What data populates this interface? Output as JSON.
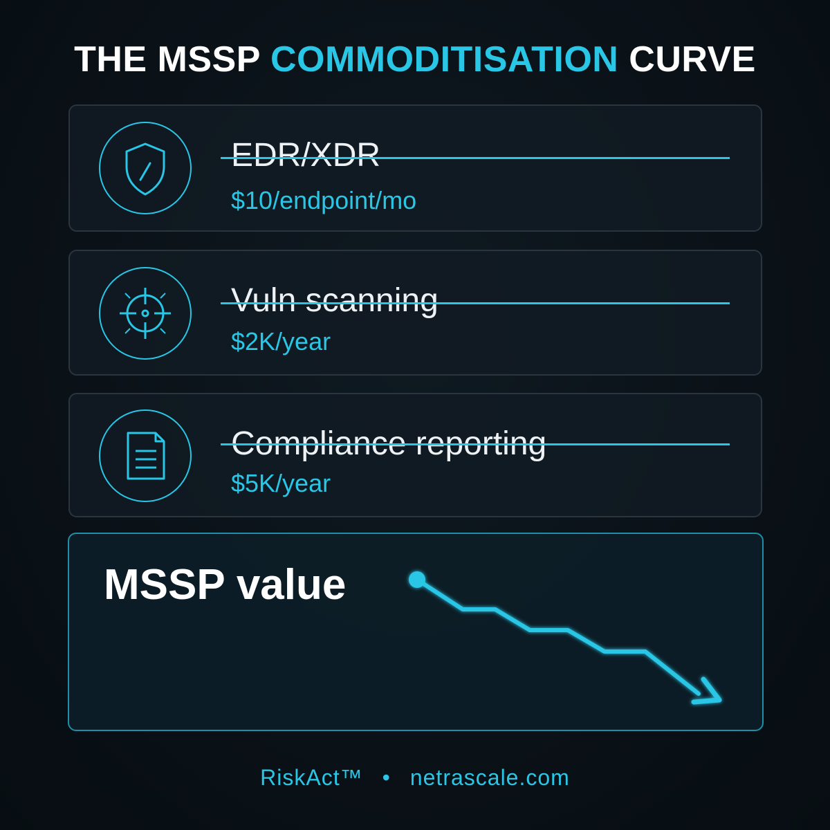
{
  "header": {
    "title_part1": "THE MSSP",
    "title_accent": "COMMODITISATION",
    "title_part2": "CURVE"
  },
  "items": [
    {
      "title": "EDR/XDR",
      "price": "$10/endpoint/mo",
      "icon": "shield-icon",
      "struck": true
    },
    {
      "title": "Vuln scanning",
      "price": "$2K/year",
      "icon": "crosshair-icon",
      "struck": true
    },
    {
      "title": "Compliance reporting",
      "price": "$5K/year",
      "icon": "document-icon",
      "struck": true
    }
  ],
  "value_panel": {
    "label": "MSSP value",
    "trend": "declining"
  },
  "footer": {
    "brand": "RiskAct™",
    "separator": "•",
    "site": "netrascale.com"
  },
  "colors": {
    "background": "#0a1117",
    "accent": "#29c6e6",
    "text": "#ffffff",
    "card_border": "#2a3540"
  }
}
